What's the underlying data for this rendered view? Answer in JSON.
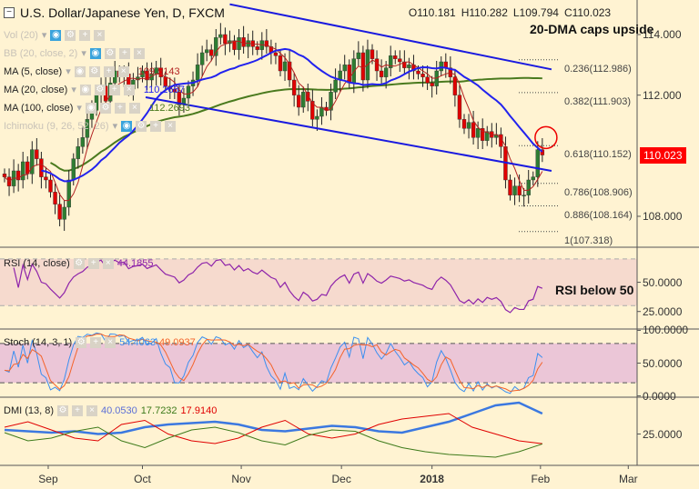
{
  "header": {
    "title": "U.S. Dollar/Japanese Yen, D, FXCM",
    "open": "O110.181",
    "high": "H110.282",
    "low": "L109.794",
    "close": "C110.023"
  },
  "indicators": [
    {
      "label": "Vol (20)",
      "value": "",
      "dim": true
    },
    {
      "label": "BB (20, close, 2)",
      "value": "",
      "dim": true
    },
    {
      "label": "MA (5, close)",
      "value": "109.5143",
      "color": "#b22222"
    },
    {
      "label": "MA (20, close)",
      "value": "110.2667",
      "color": "#2222ee"
    },
    {
      "label": "MA (100, close)",
      "value": "112.2693",
      "color": "#4a7a1e"
    },
    {
      "label": "Ichimoku (9, 26, 52, 26)",
      "value": "",
      "dim": true
    }
  ],
  "annotations": {
    "dma": "20-DMA caps upside",
    "rsi": "RSI below 50"
  },
  "last_price": "110.023",
  "colors": {
    "up": "#2e7d32",
    "down": "#e00000",
    "channel": "#1a1adf",
    "ma5": "#b22222",
    "ma20": "#2222ee",
    "ma100": "#4a7a1e",
    "rsi": "#8e24aa",
    "stoch_k": "#3b8ff0",
    "stoch_d": "#f4632a",
    "dmi_adx": "#3b78e0",
    "dmi_plus": "#e00000",
    "dmi_minus": "#3d7a1a",
    "last": "#ff0000"
  },
  "chart_data": [
    {
      "type": "candlestick",
      "ylim": [
        106.8,
        115.1
      ],
      "yticks": [
        "114.000",
        "112.000",
        "108.000"
      ],
      "ytick_values": [
        114,
        112,
        108
      ],
      "closes": [
        109.3,
        109.0,
        109.5,
        109.2,
        109.8,
        109.4,
        110.2,
        109.9,
        109.3,
        109.2,
        108.8,
        108.4,
        107.9,
        108.3,
        109.2,
        109.9,
        110.3,
        110.6,
        111.2,
        111.5,
        112.0,
        112.3,
        111.8,
        112.4,
        112.8,
        112.6,
        112.7,
        112.2,
        112.5,
        112.6,
        112.8,
        112.5,
        112.7,
        112.9,
        112.6,
        112.3,
        112.2,
        112.1,
        111.7,
        111.9,
        112.3,
        112.5,
        113.0,
        113.4,
        113.5,
        113.3,
        113.9,
        114.0,
        113.7,
        113.8,
        113.5,
        113.9,
        113.6,
        113.8,
        113.6,
        113.5,
        113.8,
        113.6,
        113.4,
        113.3,
        112.8,
        113.1,
        112.5,
        112.0,
        111.6,
        112.1,
        111.8,
        111.2,
        111.3,
        111.6,
        111.5,
        112.1,
        112.5,
        112.8,
        113.0,
        112.4,
        113.2,
        113.4,
        112.5,
        113.5,
        113.2,
        112.8,
        112.6,
        112.9,
        113.3,
        113.2,
        113.1,
        112.9,
        113.0,
        112.8,
        112.7,
        112.6,
        112.4,
        112.3,
        112.8,
        113.1,
        112.9,
        112.6,
        112.0,
        111.2,
        110.9,
        111.1,
        110.6,
        110.9,
        110.5,
        110.8,
        110.6,
        110.7,
        110.3,
        109.2,
        108.7,
        109.0,
        108.7,
        108.7,
        109.2,
        109.3,
        110.2,
        110.023
      ],
      "channel": {
        "upper": [
          [
            49,
            115.0
          ],
          [
            119,
            112.85
          ]
        ],
        "lower": [
          [
            30.7,
            111.93
          ],
          [
            119,
            109.5
          ]
        ]
      },
      "fib": [
        {
          "label": "0.236(112.986)",
          "v": 112.986
        },
        {
          "label": "0.382(111.903)",
          "v": 111.903
        },
        {
          "label": "0.618(110.152)",
          "v": 110.152
        },
        {
          "label": "0.786(108.906)",
          "v": 108.906
        },
        {
          "label": "0.886(108.164)",
          "v": 108.164
        },
        {
          "label": "1(107.318)",
          "v": 107.318
        }
      ],
      "circle": [
        117.8,
        110.6
      ],
      "xticks": [
        {
          "label": "Sep",
          "i": 9.5
        },
        {
          "label": "Oct",
          "i": 30
        },
        {
          "label": "Nov",
          "i": 51.5
        },
        {
          "label": "Dec",
          "i": 73.3
        },
        {
          "label": "2018",
          "i": 93,
          "bold": true
        },
        {
          "label": "Feb",
          "i": 116.6
        },
        {
          "label": "Mar",
          "i": 135.7
        }
      ]
    },
    {
      "type": "line",
      "name": "RSI (14, close)",
      "value": "44.1855",
      "ylim": [
        10,
        80
      ],
      "bands": [
        30,
        70
      ],
      "yticks": [
        "50.0000",
        "25.0000"
      ],
      "ytick_values": [
        50,
        25
      ]
    },
    {
      "type": "line",
      "name": "Stoch (14, 3, 1)",
      "values_label": [
        "54.4063",
        "49.0937"
      ],
      "ylim": [
        -2,
        102
      ],
      "bands": [
        20,
        80
      ],
      "yticks": [
        "100.0000",
        "50.0000",
        "0.0000"
      ],
      "ytick_values": [
        100,
        50,
        0
      ]
    },
    {
      "type": "line",
      "name": "DMI (13, 8)",
      "values_label": [
        "40.0530",
        "17.7232",
        "17.9140"
      ],
      "ylim": [
        2,
        52
      ],
      "yticks": [
        "25.0000"
      ],
      "ytick_values": [
        25
      ],
      "adx": [
        28,
        27,
        26,
        27,
        25,
        26,
        30,
        32,
        33,
        34,
        32,
        28,
        27,
        29,
        31,
        30,
        27,
        26,
        30,
        34,
        40,
        46,
        48,
        40
      ],
      "plus": [
        30,
        34,
        28,
        22,
        20,
        32,
        35,
        25,
        20,
        18,
        22,
        30,
        35,
        25,
        22,
        25,
        32,
        36,
        38,
        40,
        30,
        25,
        20,
        17.9
      ],
      "minus": [
        26,
        20,
        22,
        27,
        30,
        20,
        15,
        22,
        28,
        30,
        26,
        20,
        17,
        24,
        28,
        27,
        20,
        15,
        12,
        10,
        9,
        8,
        12,
        17.7
      ]
    }
  ]
}
